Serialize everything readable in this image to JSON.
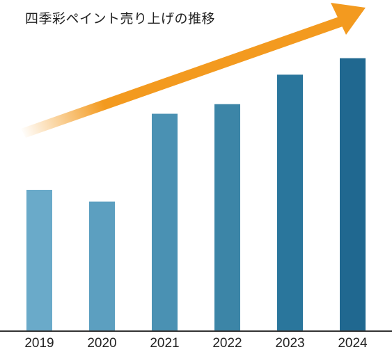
{
  "chart_data": {
    "type": "bar",
    "title": "四季彩ペイント売り上げの推移",
    "xlabel": "",
    "ylabel": "",
    "categories": [
      "2019",
      "2020",
      "2021",
      "2022",
      "2023",
      "2024"
    ],
    "values": [
      206,
      189,
      317,
      331,
      374,
      398
    ],
    "ylim": [
      0,
      420
    ],
    "grid": false,
    "legend": "none",
    "bar_colors": [
      "#6aaac9",
      "#5c9fc0",
      "#4a91b3",
      "#3c85a7",
      "#2a769c",
      "#206890"
    ],
    "trend_arrow_color": "#f39a1f"
  }
}
